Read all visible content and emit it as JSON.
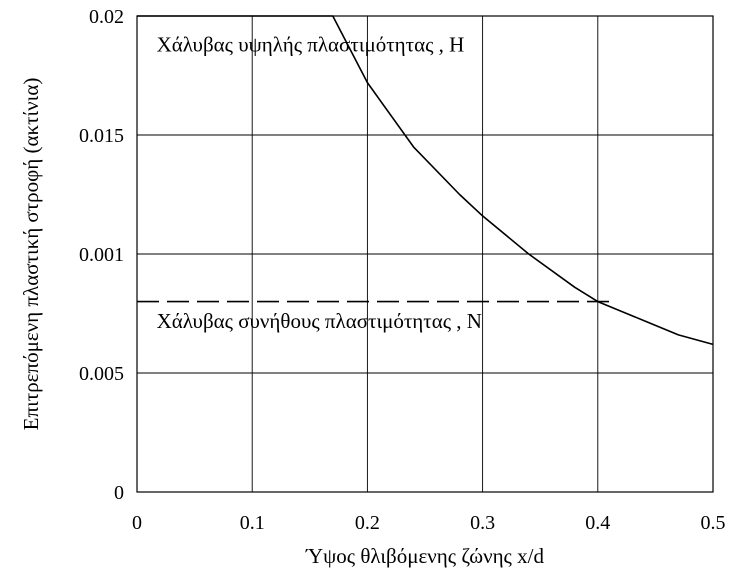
{
  "chart_data": {
    "type": "line",
    "title": "",
    "xlabel": "Ύψος θλιβόμενης ζώνης x/d",
    "ylabel": "Επιτρεπόμενη πλαστική στροφή (ακτίνια)",
    "xlim": [
      0,
      0.5
    ],
    "x_ticks": [
      {
        "value": 0,
        "label": "0"
      },
      {
        "value": 0.1,
        "label": "0.1"
      },
      {
        "value": 0.2,
        "label": "0.2"
      },
      {
        "value": 0.3,
        "label": "0.3"
      },
      {
        "value": 0.4,
        "label": "0.4"
      },
      {
        "value": 0.5,
        "label": "0.5"
      }
    ],
    "y_ticks": [
      {
        "label": "0"
      },
      {
        "label": "0.005"
      },
      {
        "label": "0.001"
      },
      {
        "label": "0.015"
      },
      {
        "label": "0.02"
      }
    ],
    "ylim": [
      0,
      0.02
    ],
    "grid": true,
    "legend": "none",
    "series": [
      {
        "name": "Χάλυβας υψηλής πλαστιμότητας , Η",
        "style": "solid",
        "color": "#000000",
        "x": [
          0,
          0.17,
          0.2,
          0.24,
          0.28,
          0.3,
          0.34,
          0.38,
          0.4,
          0.44,
          0.47,
          0.5
        ],
        "y": [
          0.02,
          0.02,
          0.0172,
          0.0145,
          0.0125,
          0.0116,
          0.01,
          0.0086,
          0.008,
          0.0072,
          0.0066,
          0.0062
        ]
      },
      {
        "name": "Χάλυβας συνήθους πλαστιμότητας , Ν",
        "style": "dashed",
        "color": "#000000",
        "x": [
          0,
          0.41
        ],
        "y": [
          0.008,
          0.008
        ]
      }
    ],
    "annotations": [
      {
        "text": "Χάλυβας υψηλής πλαστιμότητας , Η",
        "x": 0.017,
        "y": 0.0185
      },
      {
        "text": "Χάλυβας συνήθους πλαστιμότητας , Ν",
        "x": 0.017,
        "y": 0.0069
      }
    ]
  }
}
